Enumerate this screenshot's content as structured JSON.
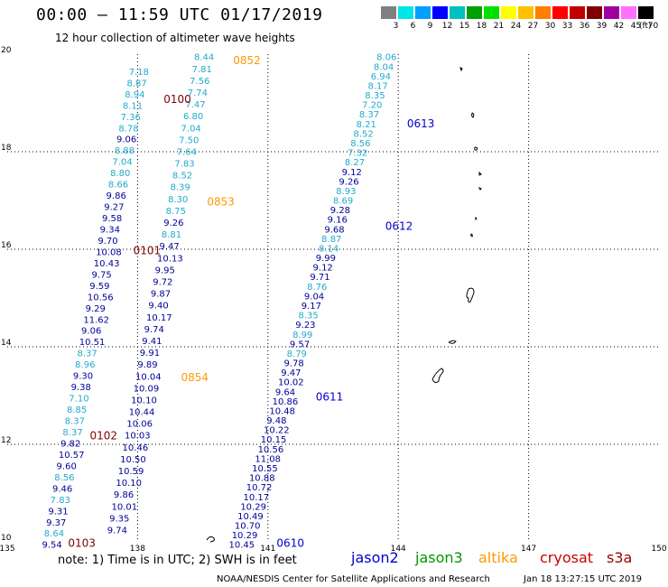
{
  "title": "00:00 – 11:59 UTC 01/17/2019",
  "subtitle": "12 hour collection of altimeter wave heights",
  "legend": {
    "labels": [
      "3",
      "6",
      "9",
      "12",
      "15",
      "18",
      "21",
      "24",
      "27",
      "30",
      "33",
      "36",
      "39",
      "42",
      "45",
      "70"
    ],
    "unit": "(ft)",
    "colors": [
      "#808080",
      "#00e5e5",
      "#00a0ff",
      "#0000ff",
      "#00c0c0",
      "#00a000",
      "#00e000",
      "#ffff00",
      "#ffc000",
      "#ff8000",
      "#ff0000",
      "#c00000",
      "#800000",
      "#a000a0",
      "#ff70ff",
      "#000000"
    ]
  },
  "chart_data": {
    "type": "map",
    "x_ticks": [
      "135",
      "138",
      "141",
      "144",
      "147",
      "150"
    ],
    "y_ticks": [
      "10",
      "12",
      "14",
      "16",
      "18",
      "20"
    ],
    "xlim": [
      135,
      150
    ],
    "ylim": [
      10,
      20
    ],
    "grid": true,
    "passes": [
      {
        "label": "0852",
        "color": "#ff9900",
        "label_pos": [
          140.2,
          19.8
        ]
      },
      {
        "label": "0853",
        "color": "#ff9900",
        "label_pos": [
          139.6,
          16.9
        ]
      },
      {
        "label": "0854",
        "color": "#ff9900",
        "label_pos": [
          139.0,
          13.3
        ]
      },
      {
        "label": "0100",
        "color": "#800000",
        "label_pos": [
          138.6,
          19.0
        ]
      },
      {
        "label": "0101",
        "color": "#800000",
        "label_pos": [
          137.9,
          15.9
        ]
      },
      {
        "label": "0102",
        "color": "#800000",
        "label_pos": [
          136.9,
          12.1
        ]
      },
      {
        "label": "0103",
        "color": "#800000",
        "label_pos": [
          136.4,
          9.9
        ]
      },
      {
        "label": "0613",
        "color": "#0000cc",
        "label_pos": [
          144.2,
          18.5
        ]
      },
      {
        "label": "0612",
        "color": "#0000cc",
        "label_pos": [
          143.7,
          16.4
        ]
      },
      {
        "label": "0611",
        "color": "#0000cc",
        "label_pos": [
          142.1,
          12.9
        ]
      },
      {
        "label": "0610",
        "color": "#0000cc",
        "label_pos": [
          141.2,
          9.9
        ]
      }
    ],
    "columns": [
      {
        "name": "A",
        "values": [
          [
            "7.18",
            "#22aacc"
          ],
          [
            "8.87",
            "#22aacc"
          ],
          [
            "8.94",
            "#22aacc"
          ],
          [
            "8.11",
            "#22aacc"
          ],
          [
            "7.36",
            "#22aacc"
          ],
          [
            "8.78",
            "#22aacc"
          ],
          [
            "9.06",
            "#000099"
          ],
          [
            "8.88",
            "#22aacc"
          ],
          [
            "7.04",
            "#22aacc"
          ],
          [
            "8.80",
            "#22aacc"
          ],
          [
            "8.66",
            "#22aacc"
          ],
          [
            "9.86",
            "#000099"
          ],
          [
            "9.27",
            "#000099"
          ],
          [
            "9.58",
            "#000099"
          ],
          [
            "9.34",
            "#000099"
          ],
          [
            "9.70",
            "#000099"
          ],
          [
            "10.08",
            "#000099"
          ],
          [
            "10.43",
            "#000099"
          ],
          [
            "9.75",
            "#000099"
          ],
          [
            "9.59",
            "#000099"
          ],
          [
            "10.56",
            "#000099"
          ],
          [
            "9.29",
            "#000099"
          ],
          [
            "11.62",
            "#000099"
          ],
          [
            "9.06",
            "#000099"
          ],
          [
            "10.51",
            "#000099"
          ],
          [
            "8.37",
            "#22aacc"
          ],
          [
            "8.96",
            "#22aacc"
          ],
          [
            "9.30",
            "#000099"
          ],
          [
            "9.38",
            "#000099"
          ],
          [
            "7.10",
            "#22aacc"
          ],
          [
            "8.85",
            "#22aacc"
          ],
          [
            "8.37",
            "#22aacc"
          ],
          [
            "8.37",
            "#22aacc"
          ],
          [
            "9.82",
            "#000099"
          ],
          [
            "10.57",
            "#000099"
          ],
          [
            "9.60",
            "#000099"
          ],
          [
            "8.56",
            "#22aacc"
          ],
          [
            "9.46",
            "#000099"
          ],
          [
            "7.83",
            "#22aacc"
          ],
          [
            "9.31",
            "#000099"
          ],
          [
            "9.37",
            "#000099"
          ],
          [
            "8.64",
            "#22aacc"
          ],
          [
            "9.54",
            "#000099"
          ]
        ]
      },
      {
        "name": "B",
        "values": [
          [
            "8.44",
            "#22aacc"
          ],
          [
            "7.81",
            "#22aacc"
          ],
          [
            "7.56",
            "#22aacc"
          ],
          [
            "7.74",
            "#22aacc"
          ],
          [
            "7.47",
            "#22aacc"
          ],
          [
            "6.80",
            "#22aacc"
          ],
          [
            "7.04",
            "#22aacc"
          ],
          [
            "7.50",
            "#22aacc"
          ],
          [
            "7.64",
            "#22aacc"
          ],
          [
            "7.83",
            "#22aacc"
          ],
          [
            "8.52",
            "#22aacc"
          ],
          [
            "8.39",
            "#22aacc"
          ],
          [
            "8.30",
            "#22aacc"
          ],
          [
            "8.75",
            "#22aacc"
          ],
          [
            "9.26",
            "#000099"
          ],
          [
            "8.81",
            "#22aacc"
          ],
          [
            "9.47",
            "#000099"
          ],
          [
            "10.13",
            "#000099"
          ],
          [
            "9.95",
            "#000099"
          ],
          [
            "9.72",
            "#000099"
          ],
          [
            "9.87",
            "#000099"
          ],
          [
            "9.40",
            "#000099"
          ],
          [
            "10.17",
            "#000099"
          ],
          [
            "9.74",
            "#000099"
          ],
          [
            "9.41",
            "#000099"
          ],
          [
            "9.91",
            "#000099"
          ],
          [
            "9.89",
            "#000099"
          ],
          [
            "10.04",
            "#000099"
          ],
          [
            "10.09",
            "#000099"
          ],
          [
            "10.10",
            "#000099"
          ],
          [
            "10.44",
            "#000099"
          ],
          [
            "10.06",
            "#000099"
          ],
          [
            "10.03",
            "#000099"
          ],
          [
            "10.46",
            "#000099"
          ],
          [
            "10.50",
            "#000099"
          ],
          [
            "10.59",
            "#000099"
          ],
          [
            "10.10",
            "#000099"
          ],
          [
            "9.86",
            "#000099"
          ],
          [
            "10.01",
            "#000099"
          ],
          [
            "9.35",
            "#000099"
          ],
          [
            "9.74",
            "#000099"
          ]
        ]
      },
      {
        "name": "C",
        "values": [
          [
            "10.45",
            "#000099"
          ],
          [
            "10.29",
            "#000099"
          ],
          [
            "10.70",
            "#000099"
          ],
          [
            "10.49",
            "#000099"
          ],
          [
            "10.29",
            "#000099"
          ],
          [
            "10.17",
            "#000099"
          ],
          [
            "10.72",
            "#000099"
          ],
          [
            "10.88",
            "#000099"
          ],
          [
            "10.55",
            "#000099"
          ],
          [
            "11.08",
            "#000099"
          ],
          [
            "10.56",
            "#000099"
          ],
          [
            "10.15",
            "#000099"
          ],
          [
            "10.22",
            "#000099"
          ],
          [
            "9.48",
            "#000099"
          ],
          [
            "10.48",
            "#000099"
          ],
          [
            "10.86",
            "#000099"
          ],
          [
            "9.64",
            "#000099"
          ],
          [
            "10.02",
            "#000099"
          ],
          [
            "9.47",
            "#000099"
          ],
          [
            "9.78",
            "#000099"
          ],
          [
            "8.79",
            "#22aacc"
          ],
          [
            "9.57",
            "#000099"
          ],
          [
            "8.99",
            "#22aacc"
          ],
          [
            "9.23",
            "#000099"
          ],
          [
            "8.35",
            "#22aacc"
          ],
          [
            "9.17",
            "#000099"
          ],
          [
            "9.04",
            "#000099"
          ],
          [
            "8.76",
            "#22aacc"
          ],
          [
            "9.71",
            "#000099"
          ],
          [
            "9.12",
            "#000099"
          ],
          [
            "9.99",
            "#000099"
          ],
          [
            "8.14",
            "#22aacc"
          ],
          [
            "8.87",
            "#22aacc"
          ],
          [
            "9.68",
            "#000099"
          ],
          [
            "9.16",
            "#000099"
          ],
          [
            "9.28",
            "#000099"
          ],
          [
            "8.69",
            "#22aacc"
          ],
          [
            "8.93",
            "#22aacc"
          ],
          [
            "9.26",
            "#000099"
          ],
          [
            "9.12",
            "#000099"
          ],
          [
            "8.27",
            "#22aacc"
          ],
          [
            "7.32",
            "#22aacc"
          ],
          [
            "8.56",
            "#22aacc"
          ],
          [
            "8.52",
            "#22aacc"
          ],
          [
            "8.21",
            "#22aacc"
          ],
          [
            "8.37",
            "#22aacc"
          ],
          [
            "7.20",
            "#22aacc"
          ],
          [
            "8.35",
            "#22aacc"
          ],
          [
            "8.17",
            "#22aacc"
          ],
          [
            "6.94",
            "#22aacc"
          ],
          [
            "8.04",
            "#22aacc"
          ],
          [
            "8.06",
            "#22aacc"
          ]
        ]
      }
    ]
  },
  "notes": "note:  1) Time is in UTC;  2) SWH is in feet",
  "satellites": [
    {
      "name": "jason2",
      "color": "#0000cc"
    },
    {
      "name": "jason3",
      "color": "#009900"
    },
    {
      "name": "altika",
      "color": "#ff9900"
    },
    {
      "name": "cryosat",
      "color": "#cc0000"
    },
    {
      "name": "s3a",
      "color": "#990000"
    }
  ],
  "credit": "NOAA/NESDIS Center for Satellite Applications and Research",
  "timestamp": "Jan 18 13:27:15 UTC 2019"
}
